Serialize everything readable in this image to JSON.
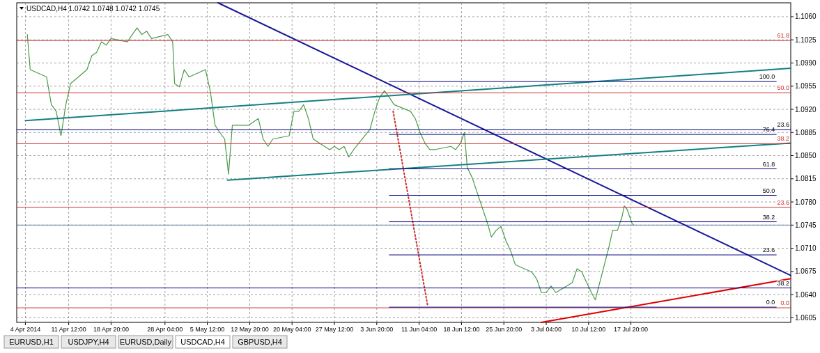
{
  "chart_data": {
    "type": "line",
    "title": "USDCAD,H4  1.0742 1.0748 1.0742 1.0745",
    "xlim": [
      "2014-04-02T12:00",
      "2014-08-14T12:00"
    ],
    "ylim": [
      1.0598,
      1.1081
    ],
    "xticks": [
      {
        "value": "2014-04-04",
        "label": "4 Apr 2014"
      },
      {
        "value": "2014-04-11T12:00",
        "label": "11 Apr 12:00"
      },
      {
        "value": "2014-04-18T20:00",
        "label": "18 Apr 20:00"
      },
      {
        "value": "2014-04-28T04:00",
        "label": "28 Apr 04:00"
      },
      {
        "value": "2014-05-05T12:00",
        "label": "5 May 12:00"
      },
      {
        "value": "2014-05-12T20:00",
        "label": "12 May 20:00"
      },
      {
        "value": "2014-05-20T04:00",
        "label": "20 May 04:00"
      },
      {
        "value": "2014-05-27T12:00",
        "label": "27 May 12:00"
      },
      {
        "value": "2014-06-03T20:00",
        "label": "3 Jun 20:00"
      },
      {
        "value": "2014-06-11T04:00",
        "label": "11 Jun 04:00"
      },
      {
        "value": "2014-06-18T12:00",
        "label": "18 Jun 12:00"
      },
      {
        "value": "2014-06-25T20:00",
        "label": "25 Jun 20:00"
      },
      {
        "value": "2014-07-03T04:00",
        "label": "3 Jul 04:00"
      },
      {
        "value": "2014-07-10T12:00",
        "label": "10 Jul 12:00"
      },
      {
        "value": "2014-07-17T20:00",
        "label": "17 Jul 20:00"
      }
    ],
    "yticks": [
      {
        "value": 1.106,
        "label": "1.1060"
      },
      1.1025,
      {
        "value": 1.099,
        "label": "1.0990"
      },
      1.0955,
      {
        "value": 1.092,
        "label": "1.0920"
      },
      1.0885,
      {
        "value": 1.085,
        "label": "1.0850"
      },
      1.0815,
      {
        "value": 1.078,
        "label": "1.0780"
      },
      1.0745,
      {
        "value": 1.071,
        "label": "1.0710"
      },
      1.0675,
      {
        "value": 1.064,
        "label": "1.0640"
      },
      1.0605
    ],
    "grid": true,
    "series": [
      {
        "color": "#4a9a4a",
        "x": [
          "2014-04-04T08:00",
          "2014-04-04T20:00",
          "2014-04-07T16:00",
          "2014-04-08T12:00",
          "2014-04-09T08:00",
          "2014-04-10T04:00",
          "2014-04-11T00:00",
          "2014-04-11T20:00",
          "2014-04-14T16:00",
          "2014-04-15T12:00",
          "2014-04-16T08:00",
          "2014-04-17T04:00",
          "2014-04-18T00:00",
          "2014-04-18T20:00",
          "2014-04-21T16:00",
          "2014-04-22T12:00",
          "2014-04-23T08:00",
          "2014-04-24T04:00",
          "2014-04-25T00:00",
          "2014-04-25T20:00",
          "2014-04-28T16:00",
          "2014-04-29T12:00",
          "2014-04-29T20:00",
          "2014-04-30T16:00",
          "2014-05-01T12:00",
          "2014-05-02T08:00",
          "2014-05-05T04:00",
          "2014-05-06T00:00",
          "2014-05-06T20:00",
          "2014-05-07T16:00",
          "2014-05-08T12:00",
          "2014-05-09T04:00",
          "2014-05-09T20:00",
          "2014-05-12T16:00",
          "2014-05-13T12:00",
          "2014-05-14T08:00",
          "2014-05-15T04:00",
          "2014-05-16T00:00",
          "2014-05-16T20:00",
          "2014-05-19T16:00",
          "2014-05-20T12:00",
          "2014-05-21T08:00",
          "2014-05-22T04:00",
          "2014-05-23T00:00",
          "2014-05-23T20:00",
          "2014-05-26T16:00",
          "2014-05-27T12:00",
          "2014-05-28T08:00",
          "2014-05-29T04:00",
          "2014-05-30T00:00",
          "2014-05-30T20:00",
          "2014-06-02T16:00",
          "2014-06-03T12:00",
          "2014-06-04T08:00",
          "2014-06-05T04:00",
          "2014-06-06T00:00",
          "2014-06-06T20:00",
          "2014-06-09T16:00",
          "2014-06-10T12:00",
          "2014-06-11T08:00",
          "2014-06-12T04:00",
          "2014-06-13T00:00",
          "2014-06-13T20:00",
          "2014-06-16T16:00",
          "2014-06-17T12:00",
          "2014-06-18T08:00",
          "2014-06-19T00:00",
          "2014-06-19T12:00",
          "2014-06-20T08:00",
          "2014-06-23T00:00",
          "2014-06-23T16:00",
          "2014-06-24T12:00",
          "2014-06-25T08:00",
          "2014-06-26T04:00",
          "2014-06-27T00:00",
          "2014-06-27T20:00",
          "2014-06-30T16:00",
          "2014-07-01T12:00",
          "2014-07-02T08:00",
          "2014-07-03T04:00",
          "2014-07-04T00:00",
          "2014-07-04T20:00",
          "2014-07-07T16:00",
          "2014-07-08T12:00",
          "2014-07-09T08:00",
          "2014-07-10T04:00",
          "2014-07-11T00:00",
          "2014-07-11T16:00",
          "2014-07-14T00:00",
          "2014-07-14T16:00",
          "2014-07-15T12:00",
          "2014-07-16T08:00",
          "2014-07-16T16:00",
          "2014-07-17T04:00",
          "2014-07-18T00:00",
          "2014-07-18T08:00"
        ],
        "values": [
          1.1033,
          1.098,
          1.0969,
          1.0927,
          1.0917,
          1.088,
          1.0927,
          1.0959,
          1.098,
          1.1001,
          1.1006,
          1.1022,
          1.1017,
          1.1027,
          1.1022,
          1.1033,
          1.1043,
          1.1033,
          1.1038,
          1.1027,
          1.1033,
          1.1022,
          1.0959,
          1.0954,
          1.098,
          1.0969,
          1.098,
          1.0948,
          1.0896,
          1.0885,
          1.0875,
          1.0822,
          1.0896,
          1.0896,
          1.0901,
          1.0906,
          1.0875,
          1.0864,
          1.0875,
          1.088,
          1.0917,
          1.0917,
          1.0927,
          1.0906,
          1.0875,
          1.0859,
          1.0864,
          1.0859,
          1.0864,
          1.0848,
          1.0859,
          1.089,
          1.0917,
          1.0938,
          1.0948,
          1.0938,
          1.0927,
          1.0917,
          1.0906,
          1.0885,
          1.0869,
          1.0859,
          1.0859,
          1.0864,
          1.0859,
          1.0869,
          1.0885,
          1.0832,
          1.0817,
          1.0748,
          1.0727,
          1.0737,
          1.0743,
          1.0722,
          1.0706,
          1.0685,
          1.0674,
          1.0664,
          1.0643,
          1.0643,
          1.0653,
          1.0643,
          1.0658,
          1.0679,
          1.0674,
          1.0658,
          1.0643,
          1.0632,
          1.0711,
          1.0737,
          1.0737,
          1.0759,
          1.0774,
          1.0769,
          1.0748,
          1.0745
        ]
      },
      {
        "color": "#1a1a9a",
        "x": [
          "2014-05-07T08:00",
          "2014-08-14T12:00"
        ],
        "values": [
          1.1081,
          1.0669
        ]
      },
      {
        "color": "#138080",
        "x": [
          "2014-04-04T00:00",
          "2014-08-14T12:00"
        ],
        "values": [
          1.0903,
          1.0982
        ]
      },
      {
        "color": "#138080",
        "x": [
          "2014-05-09T00:00",
          "2014-08-14T12:00"
        ],
        "values": [
          1.0813,
          1.0869
        ]
      },
      {
        "color": "#e00000",
        "x": [
          "2014-07-02T08:00",
          "2014-08-14T12:00"
        ],
        "values": [
          1.0598,
          1.0664
        ]
      },
      {
        "color": "#cc3333",
        "line_style": "dotted",
        "x": [
          "2014-06-06T16:00",
          "2014-06-12T16:00"
        ],
        "values": [
          1.0917,
          1.0622
        ]
      },
      {
        "name": "100.0",
        "color": "#000080",
        "x": [
          "2014-06-06T00:00",
          "2014-08-12T00:00"
        ],
        "values": [
          1.0962,
          1.0962
        ]
      },
      {
        "name": "76.4",
        "color": "#000080",
        "x": [
          "2014-06-06T00:00",
          "2014-08-12T00:00"
        ],
        "values": [
          1.0882,
          1.0882
        ]
      },
      {
        "name": "61.8",
        "color": "#000080",
        "x": [
          "2014-06-06T00:00",
          "2014-08-12T00:00"
        ],
        "values": [
          1.083,
          1.083
        ]
      },
      {
        "name": "50.0",
        "color": "#000080",
        "x": [
          "2014-06-06T00:00",
          "2014-08-12T00:00"
        ],
        "values": [
          1.079,
          1.079
        ]
      },
      {
        "name": "38.2",
        "color": "#000080",
        "x": [
          "2014-06-06T00:00",
          "2014-08-12T00:00"
        ],
        "values": [
          1.075,
          1.075
        ]
      },
      {
        "name": "23.6",
        "color": "#000080",
        "x": [
          "2014-06-06T00:00",
          "2014-08-12T00:00"
        ],
        "values": [
          1.07,
          1.07
        ]
      },
      {
        "name": "61.8",
        "color": "#cc3333",
        "x": [
          "2014-04-02T12:00",
          "2014-08-14T12:00"
        ],
        "values": [
          1.1024,
          1.1024
        ]
      },
      {
        "name": "50.0",
        "color": "#cc3333",
        "x": [
          "2014-04-02T12:00",
          "2014-08-14T12:00"
        ],
        "values": [
          1.0945,
          1.0945
        ]
      },
      {
        "name": "23.6",
        "color": "#000080",
        "x": [
          "2014-04-02T12:00",
          "2014-08-14T12:00"
        ],
        "values": [
          1.0889,
          1.0889
        ]
      },
      {
        "name": "38.2",
        "color": "#cc3333",
        "x": [
          "2014-04-02T12:00",
          "2014-08-14T12:00"
        ],
        "values": [
          1.0868,
          1.0868
        ]
      },
      {
        "name": "23.6",
        "color": "#cc3333",
        "x": [
          "2014-04-02T12:00",
          "2014-08-14T12:00"
        ],
        "values": [
          1.0772,
          1.0772
        ]
      },
      {
        "name": "38.2",
        "color": "#000080",
        "x": [
          "2014-04-02T12:00",
          "2014-08-14T12:00"
        ],
        "values": [
          1.065,
          1.065
        ]
      },
      {
        "name": "0.0",
        "color": "#cc3333",
        "x": [
          "2014-04-02T12:00",
          "2014-08-14T12:00"
        ],
        "values": [
          1.062,
          1.062
        ]
      },
      {
        "name": "0.0",
        "color": "#000080",
        "x": [
          "2014-06-06T00:00",
          "2014-08-12T00:00"
        ],
        "values": [
          1.0621,
          1.0621
        ]
      }
    ],
    "ref_lines": [
      {
        "axis": "y",
        "value": 1.0745,
        "color": "#6688aa"
      }
    ],
    "annotations": [
      "EURUSD,H1",
      "USDJPY,H4",
      "EURUSD,Daily",
      "USDCAD,H4",
      "GBPUSD,H4"
    ]
  }
}
